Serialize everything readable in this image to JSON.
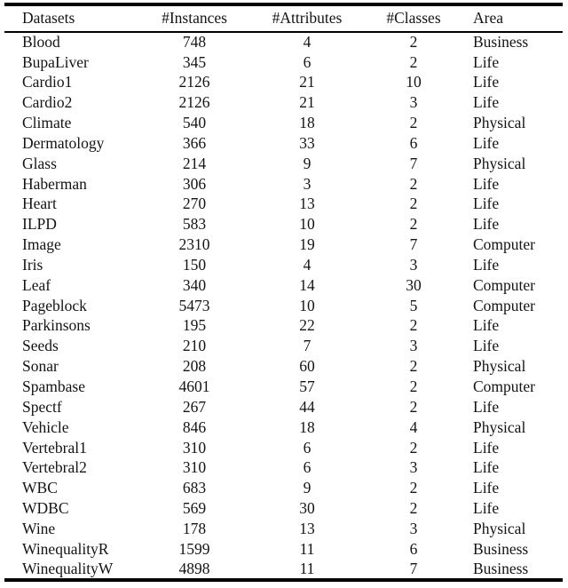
{
  "table": {
    "headers": [
      "Datasets",
      "#Instances",
      "#Attributes",
      "#Classes",
      "Area"
    ],
    "rows": [
      [
        "Blood",
        748,
        4,
        2,
        "Business"
      ],
      [
        "BupaLiver",
        345,
        6,
        2,
        "Life"
      ],
      [
        "Cardio1",
        2126,
        21,
        10,
        "Life"
      ],
      [
        "Cardio2",
        2126,
        21,
        3,
        "Life"
      ],
      [
        "Climate",
        540,
        18,
        2,
        "Physical"
      ],
      [
        "Dermatology",
        366,
        33,
        6,
        "Life"
      ],
      [
        "Glass",
        214,
        9,
        7,
        "Physical"
      ],
      [
        "Haberman",
        306,
        3,
        2,
        "Life"
      ],
      [
        "Heart",
        270,
        13,
        2,
        "Life"
      ],
      [
        "ILPD",
        583,
        10,
        2,
        "Life"
      ],
      [
        "Image",
        2310,
        19,
        7,
        "Computer"
      ],
      [
        "Iris",
        150,
        4,
        3,
        "Life"
      ],
      [
        "Leaf",
        340,
        14,
        30,
        "Computer"
      ],
      [
        "Pageblock",
        5473,
        10,
        5,
        "Computer"
      ],
      [
        "Parkinsons",
        195,
        22,
        2,
        "Life"
      ],
      [
        "Seeds",
        210,
        7,
        3,
        "Life"
      ],
      [
        "Sonar",
        208,
        60,
        2,
        "Physical"
      ],
      [
        "Spambase",
        4601,
        57,
        2,
        "Computer"
      ],
      [
        "Spectf",
        267,
        44,
        2,
        "Life"
      ],
      [
        "Vehicle",
        846,
        18,
        4,
        "Physical"
      ],
      [
        "Vertebral1",
        310,
        6,
        2,
        "Life"
      ],
      [
        "Vertebral2",
        310,
        6,
        3,
        "Life"
      ],
      [
        "WBC",
        683,
        9,
        2,
        "Life"
      ],
      [
        "WDBC",
        569,
        30,
        2,
        "Life"
      ],
      [
        "Wine",
        178,
        13,
        3,
        "Physical"
      ],
      [
        "WinequalityR",
        1599,
        11,
        6,
        "Business"
      ],
      [
        "WinequalityW",
        4898,
        11,
        7,
        "Business"
      ]
    ]
  },
  "chart_data": {
    "type": "table",
    "title": "",
    "columns": [
      "Datasets",
      "#Instances",
      "#Attributes",
      "#Classes",
      "Area"
    ],
    "rows": [
      [
        "Blood",
        748,
        4,
        2,
        "Business"
      ],
      [
        "BupaLiver",
        345,
        6,
        2,
        "Life"
      ],
      [
        "Cardio1",
        2126,
        21,
        10,
        "Life"
      ],
      [
        "Cardio2",
        2126,
        21,
        3,
        "Life"
      ],
      [
        "Climate",
        540,
        18,
        2,
        "Physical"
      ],
      [
        "Dermatology",
        366,
        33,
        6,
        "Life"
      ],
      [
        "Glass",
        214,
        9,
        7,
        "Physical"
      ],
      [
        "Haberman",
        306,
        3,
        2,
        "Life"
      ],
      [
        "Heart",
        270,
        13,
        2,
        "Life"
      ],
      [
        "ILPD",
        583,
        10,
        2,
        "Life"
      ],
      [
        "Image",
        2310,
        19,
        7,
        "Computer"
      ],
      [
        "Iris",
        150,
        4,
        3,
        "Life"
      ],
      [
        "Leaf",
        340,
        14,
        30,
        "Computer"
      ],
      [
        "Pageblock",
        5473,
        10,
        5,
        "Computer"
      ],
      [
        "Parkinsons",
        195,
        22,
        2,
        "Life"
      ],
      [
        "Seeds",
        210,
        7,
        3,
        "Life"
      ],
      [
        "Sonar",
        208,
        60,
        2,
        "Physical"
      ],
      [
        "Spambase",
        4601,
        57,
        2,
        "Computer"
      ],
      [
        "Spectf",
        267,
        44,
        2,
        "Life"
      ],
      [
        "Vehicle",
        846,
        18,
        4,
        "Physical"
      ],
      [
        "Vertebral1",
        310,
        6,
        2,
        "Life"
      ],
      [
        "Vertebral2",
        310,
        6,
        3,
        "Life"
      ],
      [
        "WBC",
        683,
        9,
        2,
        "Life"
      ],
      [
        "WDBC",
        569,
        30,
        2,
        "Life"
      ],
      [
        "Wine",
        178,
        13,
        3,
        "Physical"
      ],
      [
        "WinequalityR",
        1599,
        11,
        6,
        "Business"
      ],
      [
        "WinequalityW",
        4898,
        11,
        7,
        "Business"
      ]
    ],
    "colors": {
      "text": "#141414",
      "rule": "#000000",
      "background": "#ffffff"
    }
  }
}
